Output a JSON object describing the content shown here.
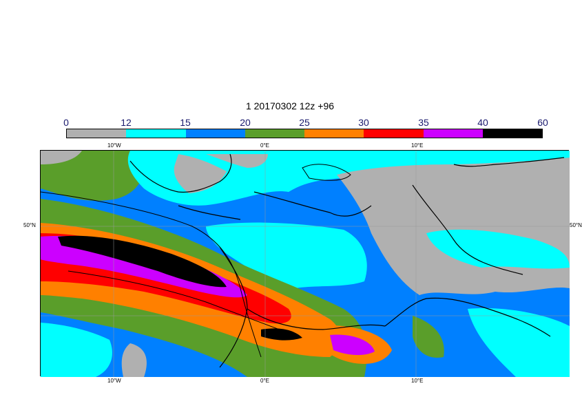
{
  "title": "1 20170302 12z +96",
  "colorbar": {
    "levels": [
      "0",
      "12",
      "15",
      "20",
      "25",
      "30",
      "35",
      "40",
      "60"
    ],
    "colors": [
      "#b0b0b0",
      "#00ffff",
      "#0080ff",
      "#5a9e2a",
      "#ff8000",
      "#ff0000",
      "#cc00ff",
      "#000000"
    ]
  },
  "axes": {
    "lon_top": [
      "10°W",
      "0°E",
      "10°E"
    ],
    "lon_bottom": [
      "10°W",
      "0°E",
      "10°E"
    ],
    "lat_left": "50°N",
    "lat_right": "50°N"
  },
  "map_colors": {
    "land_gray": "#b0b0b0",
    "cyan": "#00ffff",
    "blue": "#0080ff",
    "green": "#5a9e2a",
    "orange": "#ff8000",
    "red": "#ff0000",
    "magenta": "#cc00ff",
    "black": "#000000"
  }
}
